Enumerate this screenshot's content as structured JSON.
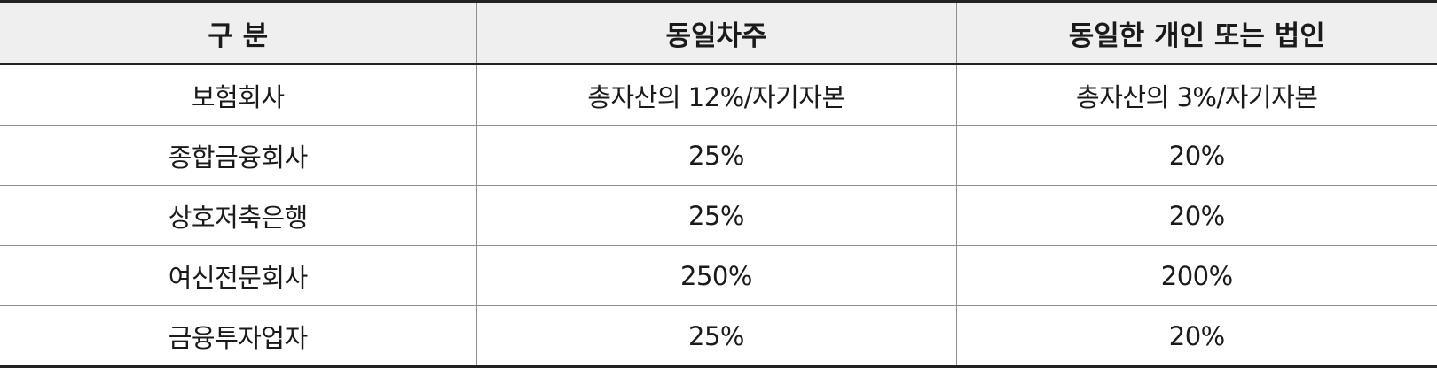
{
  "table": {
    "headers": [
      "구 분",
      "동일차주",
      "동일한 개인 또는 법인"
    ],
    "rows": [
      [
        "보험회사",
        "총자산의 12%/자기자본",
        "총자산의 3%/자기자본"
      ],
      [
        "종합금융회사",
        "25%",
        "20%"
      ],
      [
        "상호저축은행",
        "25%",
        "20%"
      ],
      [
        "여신전문회사",
        "250%",
        "200%"
      ],
      [
        "금융투자업자",
        "25%",
        "20%"
      ]
    ]
  },
  "colors": {
    "header_background": "#efefef",
    "rule_strong": "#222222",
    "rule_light": "#8f8f8f",
    "text": "#1a1a1a"
  }
}
